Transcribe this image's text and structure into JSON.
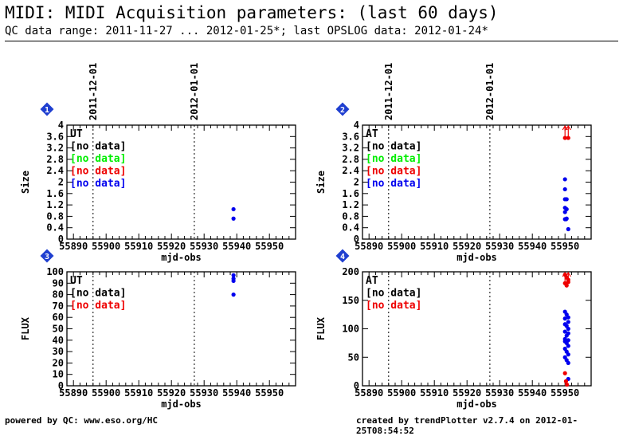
{
  "header": {
    "title": "MIDI: MIDI Acquisition parameters: (last 60 days)",
    "subtitle": "QC data range: 2011-11-27 ... 2012-01-25*; last OPSLOG data: 2012-01-24*"
  },
  "footer": {
    "left": "powered by QC: www.eso.org/HC",
    "right": "created by trendPlotter v2.7.4 on 2012-01-25T08:54:52"
  },
  "colors": {
    "blue": "#0000ee",
    "red": "#ee0000",
    "green": "#00ee00",
    "black": "#000000",
    "badge": "#1f3fd0"
  },
  "chart_data": [
    {
      "type": "scatter",
      "badge": "1",
      "xlabel": "mjd-obs",
      "ylabel": "Size",
      "xlim": [
        55888,
        55958
      ],
      "ylim": [
        0,
        4
      ],
      "xticks": [
        55890,
        55900,
        55910,
        55920,
        55930,
        55940,
        55950
      ],
      "yticks": [
        0,
        0.4,
        0.8,
        1.2,
        1.6,
        2,
        2.4,
        2.8,
        3.2,
        3.6,
        4
      ],
      "ytick_labels": [
        "0",
        "0.4",
        "0.8",
        "1.2",
        "1.6",
        "2",
        "2.4",
        "2.8",
        "3.2",
        "3.6",
        "4"
      ],
      "date_markers": [
        {
          "x": 55896,
          "label": "2011-12-01"
        },
        {
          "x": 55927,
          "label": "2012-01-01"
        }
      ],
      "legend": [
        {
          "text": "UT",
          "color": "#000000"
        },
        {
          "text": "[no data]",
          "color": "#000000"
        },
        {
          "text": "[no data]",
          "color": "#00ee00"
        },
        {
          "text": "[no data]",
          "color": "#ee0000"
        },
        {
          "text": "[no data]",
          "color": "#0000ee"
        }
      ],
      "series": [
        {
          "color": "#0000ee",
          "points": [
            [
              55939,
              1.05
            ],
            [
              55939,
              0.72
            ]
          ]
        }
      ],
      "outliers": []
    },
    {
      "type": "scatter",
      "badge": "2",
      "xlabel": "mjd-obs",
      "ylabel": "Size",
      "xlim": [
        55888,
        55958
      ],
      "ylim": [
        0,
        4
      ],
      "xticks": [
        55890,
        55900,
        55910,
        55920,
        55930,
        55940,
        55950
      ],
      "yticks": [
        0,
        0.4,
        0.8,
        1.2,
        1.6,
        2,
        2.4,
        2.8,
        3.2,
        3.6,
        4
      ],
      "ytick_labels": [
        "0",
        "0.4",
        "0.8",
        "1.2",
        "1.6",
        "2",
        "2.4",
        "2.8",
        "3.2",
        "3.6",
        "4"
      ],
      "date_markers": [
        {
          "x": 55896,
          "label": "2011-12-01"
        },
        {
          "x": 55927,
          "label": "2012-01-01"
        }
      ],
      "legend": [
        {
          "text": "AT",
          "color": "#000000"
        },
        {
          "text": "[no data]",
          "color": "#000000"
        },
        {
          "text": "[no data]",
          "color": "#00ee00"
        },
        {
          "text": "[no data]",
          "color": "#ee0000"
        },
        {
          "text": "[no data]",
          "color": "#0000ee"
        }
      ],
      "series": [
        {
          "color": "#0000ee",
          "points": [
            [
              55950,
              2.1
            ],
            [
              55950,
              1.75
            ],
            [
              55950.5,
              1.4
            ],
            [
              55950,
              1.4
            ],
            [
              55950,
              1.1
            ],
            [
              55950.5,
              1.05
            ],
            [
              55950,
              0.95
            ],
            [
              55950.5,
              0.72
            ],
            [
              55950,
              0.7
            ],
            [
              55950.3,
              0.7
            ],
            [
              55951,
              0.35
            ]
          ]
        },
        {
          "color": "#ee0000",
          "points": [
            [
              55950,
              3.55
            ],
            [
              55951,
              3.55
            ]
          ]
        }
      ],
      "outliers": [
        {
          "x": 55950,
          "color": "#ee0000"
        },
        {
          "x": 55951,
          "color": "#ee0000"
        }
      ]
    },
    {
      "type": "scatter",
      "badge": "3",
      "xlabel": "mjd-obs",
      "ylabel": "FLUX",
      "xlim": [
        55888,
        55958
      ],
      "ylim": [
        0,
        100
      ],
      "xticks": [
        55890,
        55900,
        55910,
        55920,
        55930,
        55940,
        55950
      ],
      "yticks": [
        0,
        10,
        20,
        30,
        40,
        50,
        60,
        70,
        80,
        90,
        100
      ],
      "ytick_labels": [
        "0",
        "10",
        "20",
        "30",
        "40",
        "50",
        "60",
        "70",
        "80",
        "90",
        "100"
      ],
      "date_markers": [
        {
          "x": 55896,
          "label": ""
        },
        {
          "x": 55927,
          "label": ""
        }
      ],
      "legend": [
        {
          "text": "UT",
          "color": "#000000"
        },
        {
          "text": "[no data]",
          "color": "#000000"
        },
        {
          "text": "[no data]",
          "color": "#ee0000"
        }
      ],
      "series": [
        {
          "color": "#0000ee",
          "points": [
            [
              55939,
              97
            ],
            [
              55939,
              94
            ],
            [
              55939,
              92
            ],
            [
              55939,
              80
            ]
          ]
        }
      ],
      "outliers": []
    },
    {
      "type": "scatter",
      "badge": "4",
      "xlabel": "mjd-obs",
      "ylabel": "FLUX",
      "xlim": [
        55888,
        55958
      ],
      "ylim": [
        0,
        200
      ],
      "xticks": [
        55890,
        55900,
        55910,
        55920,
        55930,
        55940,
        55950
      ],
      "yticks": [
        0,
        50,
        100,
        150,
        200
      ],
      "ytick_labels": [
        "0",
        "50",
        "100",
        "150",
        "200"
      ],
      "date_markers": [
        {
          "x": 55896,
          "label": ""
        },
        {
          "x": 55927,
          "label": ""
        }
      ],
      "legend": [
        {
          "text": "AT",
          "color": "#000000"
        },
        {
          "text": "[no data]",
          "color": "#000000"
        },
        {
          "text": "[no data]",
          "color": "#ee0000"
        }
      ],
      "series": [
        {
          "color": "#0000ee",
          "points": [
            [
              55950,
              130
            ],
            [
              55950.5,
              125
            ],
            [
              55951,
              120
            ],
            [
              55950,
              118
            ],
            [
              55951,
              112
            ],
            [
              55950,
              108
            ],
            [
              55950.5,
              105
            ],
            [
              55951,
              100
            ],
            [
              55950,
              95
            ],
            [
              55951,
              92
            ],
            [
              55950.5,
              88
            ],
            [
              55950,
              82
            ],
            [
              55951,
              80
            ],
            [
              55950,
              78
            ],
            [
              55950.5,
              75
            ],
            [
              55951,
              70
            ],
            [
              55950,
              65
            ],
            [
              55950.5,
              60
            ],
            [
              55951,
              55
            ],
            [
              55950,
              50
            ],
            [
              55950.5,
              45
            ],
            [
              55951,
              40
            ],
            [
              55951,
              12
            ]
          ]
        },
        {
          "color": "#ee0000",
          "points": [
            [
              55950,
              195
            ],
            [
              55950.5,
              190
            ],
            [
              55951,
              186
            ],
            [
              55950,
              180
            ],
            [
              55950.5,
              176
            ],
            [
              55951,
              182
            ],
            [
              55950,
              22
            ],
            [
              55950.3,
              8
            ],
            [
              55950.6,
              2
            ]
          ]
        }
      ],
      "outliers": [
        {
          "x": 55950,
          "color": "#ee0000"
        },
        {
          "x": 55951,
          "color": "#ee0000"
        }
      ]
    }
  ]
}
